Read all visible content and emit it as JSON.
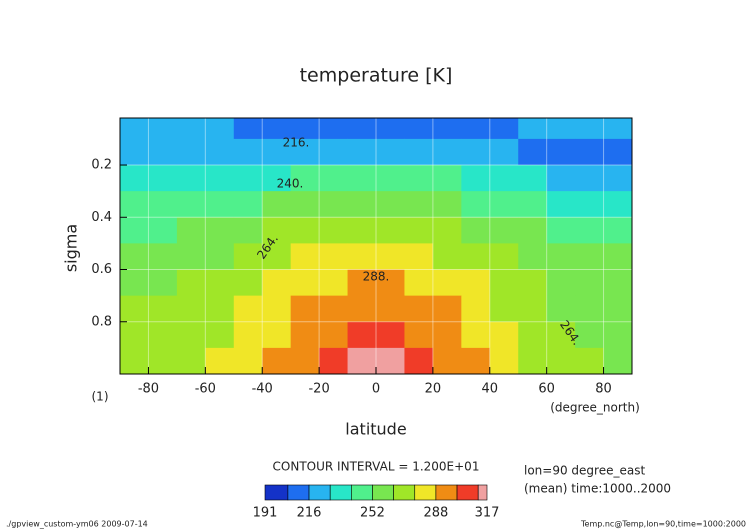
{
  "chart_data": {
    "type": "contour",
    "title": "temperature [K]",
    "xlabel": "latitude",
    "ylabel": "sigma",
    "x_unit_label": "(degree_north)",
    "y_unit_label": "(1)",
    "x": [
      -85,
      -75,
      -65,
      -55,
      -45,
      -35,
      -25,
      -15,
      -5,
      5,
      15,
      25,
      35,
      45,
      55,
      65,
      75,
      85
    ],
    "y": [
      0.05,
      0.15,
      0.25,
      0.35,
      0.45,
      0.55,
      0.65,
      0.75,
      0.85,
      0.95
    ],
    "z": [
      [
        222,
        221,
        220,
        218,
        215,
        211,
        208,
        206,
        205,
        205,
        206,
        208,
        211,
        215,
        218,
        220,
        221,
        222
      ],
      [
        220,
        220,
        221,
        221,
        222,
        223,
        224,
        225,
        225,
        225,
        224,
        222,
        220,
        217,
        215,
        214,
        213,
        212
      ],
      [
        228,
        229,
        230,
        232,
        235,
        239,
        242,
        244,
        245,
        245,
        244,
        241,
        237,
        233,
        230,
        227,
        226,
        225
      ],
      [
        240,
        241,
        242,
        245,
        248,
        252,
        256,
        259,
        260,
        260,
        258,
        255,
        251,
        246,
        242,
        239,
        237,
        236
      ],
      [
        250,
        251,
        253,
        256,
        259,
        264,
        268,
        270,
        272,
        272,
        270,
        267,
        262,
        257,
        253,
        249,
        247,
        246
      ],
      [
        257,
        258,
        260,
        263,
        267,
        272,
        276,
        279,
        281,
        281,
        279,
        275,
        270,
        264,
        259,
        255,
        253,
        252
      ],
      [
        262,
        263,
        265,
        269,
        273,
        279,
        284,
        287,
        289,
        289,
        287,
        282,
        276,
        270,
        264,
        260,
        258,
        256
      ],
      [
        265,
        267,
        269,
        273,
        278,
        284,
        289,
        293,
        295,
        295,
        292,
        288,
        281,
        274,
        267,
        262,
        260,
        258
      ],
      [
        267,
        269,
        271,
        275,
        281,
        287,
        293,
        298,
        306,
        306,
        297,
        292,
        285,
        277,
        270,
        265,
        262,
        260
      ],
      [
        268,
        270,
        272,
        277,
        284,
        291,
        298,
        302,
        313,
        313,
        302,
        296,
        289,
        280,
        273,
        267,
        264,
        262
      ]
    ],
    "xlim": [
      -90,
      90
    ],
    "ylim": [
      0.02,
      1
    ],
    "y_inverted": true,
    "xticks": [
      -80,
      -60,
      -40,
      -20,
      0,
      20,
      40,
      60,
      80
    ],
    "yticks": [
      0.2,
      0.4,
      0.6,
      0.8
    ],
    "grid": true,
    "levels": [
      191,
      204,
      216,
      228,
      240,
      252,
      264,
      276,
      288,
      300,
      312,
      317
    ],
    "colors": [
      "#1432c8",
      "#1e6ef0",
      "#28b4f0",
      "#28e6c8",
      "#50f08c",
      "#78e650",
      "#a0e628",
      "#f0e628",
      "#f08c14",
      "#f03c28",
      "#f0a0a0"
    ],
    "colorbar_ticks": [
      191,
      216,
      252,
      288,
      317
    ],
    "contour_labels": [
      "216.",
      "240.",
      "264.",
      "288.",
      "264."
    ],
    "contour_interval": "CONTOUR INTERVAL = 1.200E+01",
    "notes": [
      "lon=90 degree_east",
      "(mean) time:1000..2000"
    ],
    "footer_left": "./gpview_custom-ym06  2009-07-14",
    "footer_right": "Temp.nc@Temp,lon=90,time=1000:2000"
  }
}
